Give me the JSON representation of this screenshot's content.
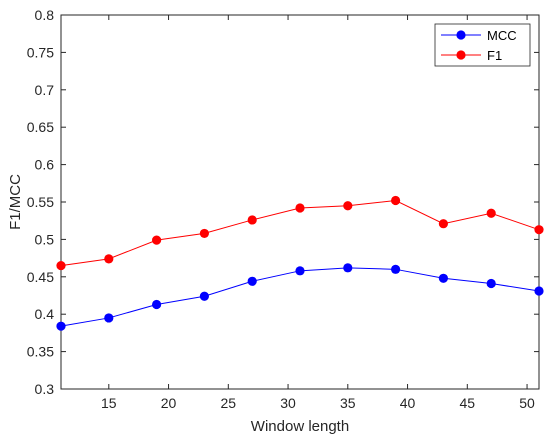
{
  "chart_data": {
    "type": "line",
    "xlabel": "Window length",
    "ylabel": "F1/MCC",
    "xlim": [
      11,
      51
    ],
    "ylim": [
      0.3,
      0.8
    ],
    "xticks": [
      15,
      20,
      25,
      30,
      35,
      40,
      45,
      50
    ],
    "xtick_labels": [
      "15",
      "20",
      "25",
      "30",
      "35",
      "40",
      "45",
      "50"
    ],
    "yticks": [
      0.3,
      0.35,
      0.4,
      0.45,
      0.5,
      0.55,
      0.6,
      0.65,
      0.7,
      0.75,
      0.8
    ],
    "ytick_labels": [
      "0.3",
      "0.35",
      "0.4",
      "0.45",
      "0.5",
      "0.55",
      "0.6",
      "0.65",
      "0.7",
      "0.75",
      "0.8"
    ],
    "x": [
      11,
      15,
      19,
      23,
      27,
      31,
      35,
      39,
      43,
      47,
      51
    ],
    "series": [
      {
        "name": "MCC",
        "color": "#0000ff",
        "values": [
          0.384,
          0.395,
          0.413,
          0.424,
          0.444,
          0.458,
          0.462,
          0.46,
          0.448,
          0.441,
          0.431
        ]
      },
      {
        "name": "F1",
        "color": "#ff0000",
        "values": [
          0.465,
          0.474,
          0.499,
          0.508,
          0.526,
          0.542,
          0.545,
          0.552,
          0.521,
          0.535,
          0.513
        ]
      }
    ],
    "grid": false,
    "legend_position": "top-right"
  }
}
